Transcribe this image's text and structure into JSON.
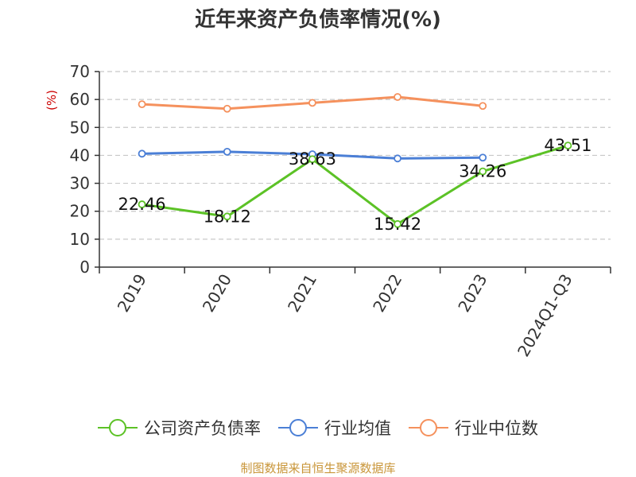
{
  "chart_data": {
    "type": "line",
    "title": "近年来资产负债率情况(%)",
    "ylabel": "(%)",
    "xlabel": "",
    "categories": [
      "2019",
      "2020",
      "2021",
      "2022",
      "2023",
      "2024Q1-Q3"
    ],
    "ylim": [
      0,
      70
    ],
    "yticks": [
      0,
      10,
      20,
      30,
      40,
      50,
      60,
      70
    ],
    "grid": true,
    "legend_position": "bottom",
    "series": [
      {
        "name": "公司资产负债率",
        "color": "#5cc226",
        "values": [
          22.46,
          18.12,
          38.63,
          15.42,
          34.26,
          43.51
        ],
        "labels": [
          "22.46",
          "18.12",
          "38.63",
          "15.42",
          "34.26",
          "43.51"
        ]
      },
      {
        "name": "行业均值",
        "color": "#4b7fd6",
        "values": [
          40.6,
          41.3,
          40.4,
          38.9,
          39.2,
          null
        ]
      },
      {
        "name": "行业中位数",
        "color": "#f5915d",
        "values": [
          58.3,
          56.7,
          58.8,
          60.9,
          57.7,
          null
        ]
      }
    ]
  },
  "source": "制图数据来自恒生聚源数据库",
  "colors": {
    "ylabel": "#cc0000",
    "axis": "#333333",
    "grid": "#c8c8c8"
  }
}
